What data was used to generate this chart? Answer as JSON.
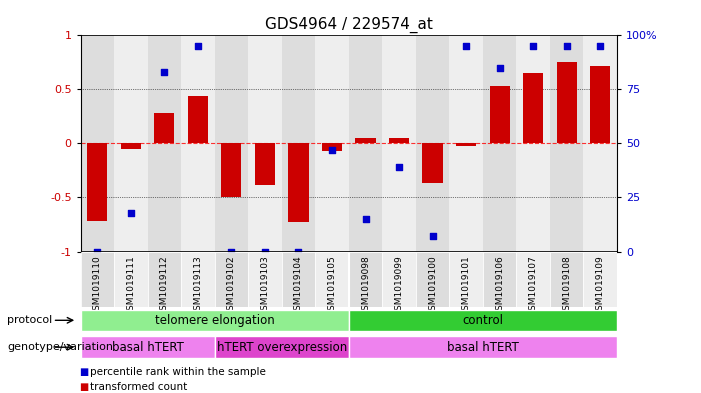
{
  "title": "GDS4964 / 229574_at",
  "samples": [
    "GSM1019110",
    "GSM1019111",
    "GSM1019112",
    "GSM1019113",
    "GSM1019102",
    "GSM1019103",
    "GSM1019104",
    "GSM1019105",
    "GSM1019098",
    "GSM1019099",
    "GSM1019100",
    "GSM1019101",
    "GSM1019106",
    "GSM1019107",
    "GSM1019108",
    "GSM1019109"
  ],
  "bar_values": [
    -0.72,
    -0.05,
    0.28,
    0.44,
    -0.5,
    -0.38,
    -0.73,
    -0.07,
    0.05,
    0.05,
    -0.37,
    -0.02,
    0.53,
    0.65,
    0.75,
    0.72
  ],
  "dot_values_pct": [
    0,
    18,
    83,
    95,
    0,
    0,
    0,
    47,
    15,
    39,
    7,
    95,
    85,
    95,
    95,
    95
  ],
  "bar_color": "#cc0000",
  "dot_color": "#0000cc",
  "ylim": [
    -1.0,
    1.0
  ],
  "yticks_left": [
    -1.0,
    -0.5,
    0.0,
    0.5,
    1.0
  ],
  "yticks_right": [
    0,
    25,
    50,
    75,
    100
  ],
  "hline_y": 0.0,
  "dotted_lines": [
    0.5,
    -0.5
  ],
  "protocol_groups": [
    {
      "label": "telomere elongation",
      "start": 0,
      "end": 8,
      "color": "#90ee90"
    },
    {
      "label": "control",
      "start": 8,
      "end": 16,
      "color": "#33cc33"
    }
  ],
  "genotype_groups": [
    {
      "label": "basal hTERT",
      "start": 0,
      "end": 4,
      "color": "#ee82ee"
    },
    {
      "label": "hTERT overexpression",
      "start": 4,
      "end": 8,
      "color": "#dd44cc"
    },
    {
      "label": "basal hTERT",
      "start": 8,
      "end": 16,
      "color": "#ee82ee"
    }
  ],
  "legend_items": [
    {
      "label": "transformed count",
      "color": "#cc0000"
    },
    {
      "label": "percentile rank within the sample",
      "color": "#0000cc"
    }
  ],
  "protocol_label": "protocol",
  "genotype_label": "genotype/variation",
  "bg_color": "#ffffff",
  "plot_bg": "#ffffff",
  "tick_label_color_left": "#cc0000",
  "tick_label_color_right": "#0000cc",
  "n_samples": 16,
  "col_bg_even": "#dddddd",
  "col_bg_odd": "#eeeeee"
}
